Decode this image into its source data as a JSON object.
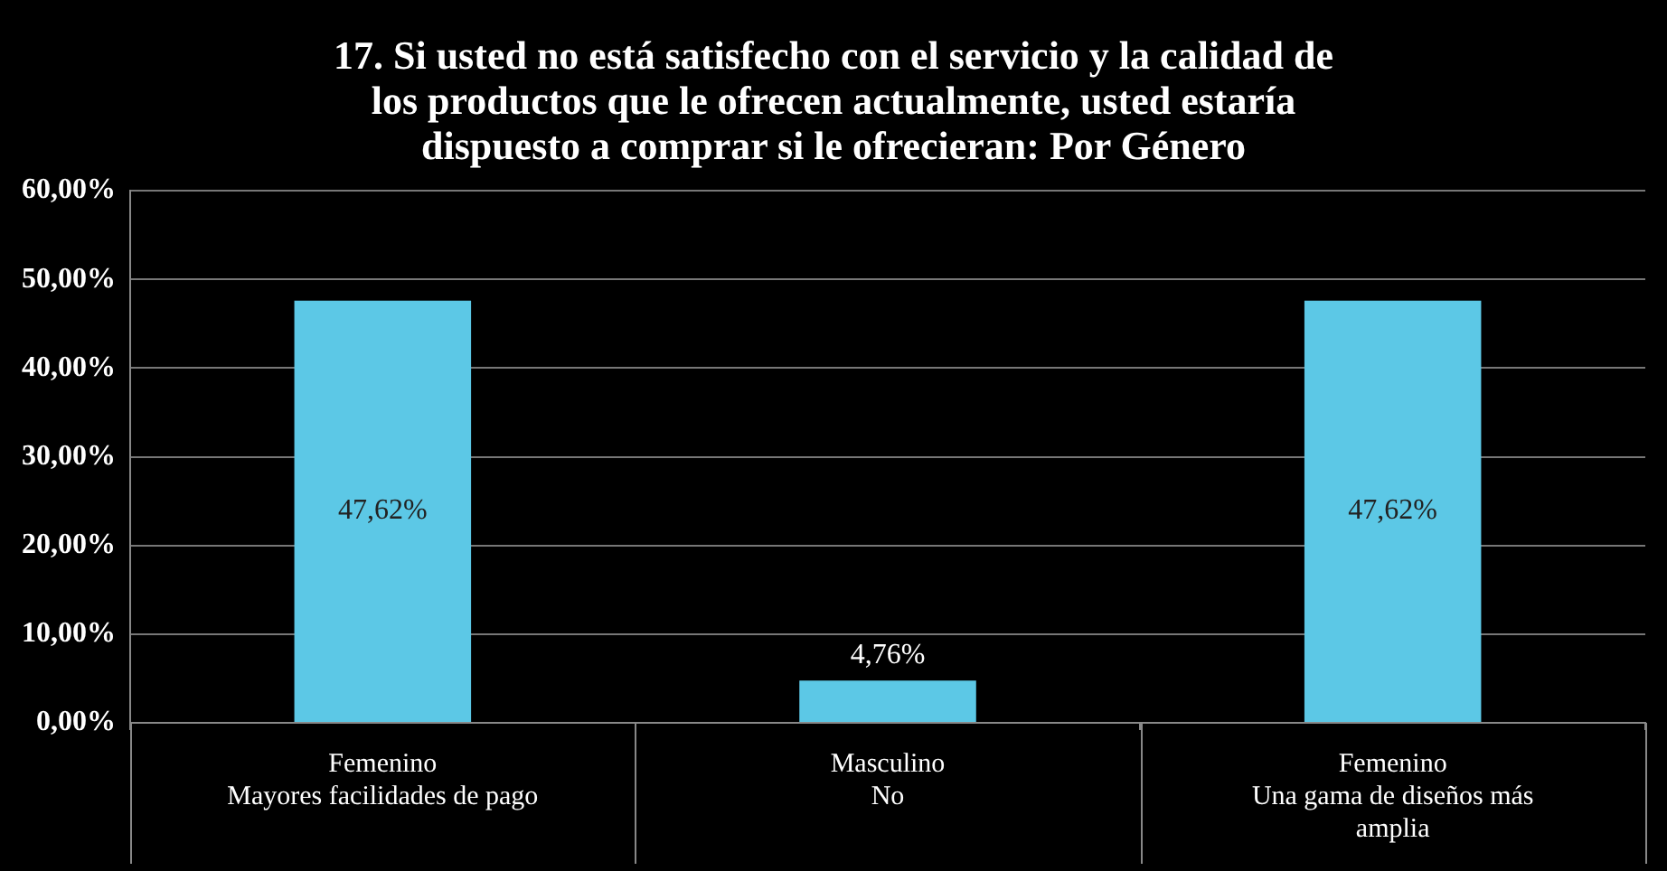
{
  "chart_data": {
    "type": "bar",
    "title": "17. Si usted no está satisfecho con el servicio y la calidad de\nlos productos que le ofrecen actualmente, usted estaría\ndispuesto a comprar si le ofrecieran:  Por Género",
    "categories": [
      "Femenino\nMayores facilidades de pago",
      "Masculino\nNo",
      "Femenino\nUna gama de diseños más\namplia"
    ],
    "values": [
      47.62,
      4.76,
      47.62
    ],
    "value_labels": [
      "47,62%",
      "4,76%",
      "47,62%"
    ],
    "color": "#5cc8e6",
    "ylim": [
      0,
      60
    ],
    "yticks": [
      {
        "value": 0,
        "label": "0,00%"
      },
      {
        "value": 10,
        "label": "10,00%"
      },
      {
        "value": 20,
        "label": "20,00%"
      },
      {
        "value": 30,
        "label": "30,00%"
      },
      {
        "value": 40,
        "label": "40,00%"
      },
      {
        "value": 50,
        "label": "50,00%"
      },
      {
        "value": 60,
        "label": "60,00%"
      }
    ],
    "grid": "y"
  }
}
